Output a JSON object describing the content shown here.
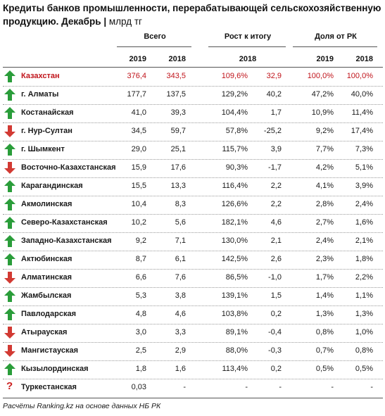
{
  "title": {
    "main": "Кредиты банков промышленности, перерабатывающей сельскохозяйственную продукцию. Декабрь",
    "separator": "|",
    "unit": "млрд тг"
  },
  "headers": {
    "total": "Всего",
    "growth": "Рост к итогу",
    "share": "Доля от РК",
    "y2019": "2019",
    "y2018": "2018"
  },
  "colors": {
    "up": "#2a9d3a",
    "down": "#d23a33",
    "highlight": "#c0141b"
  },
  "rows": [
    {
      "name": "Казахстан",
      "trend": "up",
      "highlight": true,
      "v2019": "376,4",
      "v2018": "343,5",
      "growth_pct": "109,6%",
      "growth_abs": "32,9",
      "share2019": "100,0%",
      "share2018": "100,0%"
    },
    {
      "name": "г. Алматы",
      "trend": "up",
      "v2019": "177,7",
      "v2018": "137,5",
      "growth_pct": "129,2%",
      "growth_abs": "40,2",
      "share2019": "47,2%",
      "share2018": "40,0%"
    },
    {
      "name": "Костанайская",
      "trend": "up",
      "v2019": "41,0",
      "v2018": "39,3",
      "growth_pct": "104,4%",
      "growth_abs": "1,7",
      "share2019": "10,9%",
      "share2018": "11,4%"
    },
    {
      "name": "г. Нур-Султан",
      "trend": "down",
      "v2019": "34,5",
      "v2018": "59,7",
      "growth_pct": "57,8%",
      "growth_abs": "-25,2",
      "share2019": "9,2%",
      "share2018": "17,4%"
    },
    {
      "name": "г. Шымкент",
      "trend": "up",
      "v2019": "29,0",
      "v2018": "25,1",
      "growth_pct": "115,7%",
      "growth_abs": "3,9",
      "share2019": "7,7%",
      "share2018": "7,3%"
    },
    {
      "name": "Восточно-Казахстанская",
      "trend": "down",
      "v2019": "15,9",
      "v2018": "17,6",
      "growth_pct": "90,3%",
      "growth_abs": "-1,7",
      "share2019": "4,2%",
      "share2018": "5,1%"
    },
    {
      "name": "Карагандинская",
      "trend": "up",
      "v2019": "15,5",
      "v2018": "13,3",
      "growth_pct": "116,4%",
      "growth_abs": "2,2",
      "share2019": "4,1%",
      "share2018": "3,9%"
    },
    {
      "name": "Акмолинская",
      "trend": "up",
      "v2019": "10,4",
      "v2018": "8,3",
      "growth_pct": "126,6%",
      "growth_abs": "2,2",
      "share2019": "2,8%",
      "share2018": "2,4%"
    },
    {
      "name": "Северо-Казахстанская",
      "trend": "up",
      "v2019": "10,2",
      "v2018": "5,6",
      "growth_pct": "182,1%",
      "growth_abs": "4,6",
      "share2019": "2,7%",
      "share2018": "1,6%"
    },
    {
      "name": "Западно-Казахстанская",
      "trend": "up",
      "v2019": "9,2",
      "v2018": "7,1",
      "growth_pct": "130,0%",
      "growth_abs": "2,1",
      "share2019": "2,4%",
      "share2018": "2,1%"
    },
    {
      "name": "Актюбинская",
      "trend": "up",
      "v2019": "8,7",
      "v2018": "6,1",
      "growth_pct": "142,5%",
      "growth_abs": "2,6",
      "share2019": "2,3%",
      "share2018": "1,8%"
    },
    {
      "name": "Алматинская",
      "trend": "down",
      "v2019": "6,6",
      "v2018": "7,6",
      "growth_pct": "86,5%",
      "growth_abs": "-1,0",
      "share2019": "1,7%",
      "share2018": "2,2%"
    },
    {
      "name": "Жамбылская",
      "trend": "up",
      "v2019": "5,3",
      "v2018": "3,8",
      "growth_pct": "139,1%",
      "growth_abs": "1,5",
      "share2019": "1,4%",
      "share2018": "1,1%"
    },
    {
      "name": "Павлодарская",
      "trend": "up",
      "v2019": "4,8",
      "v2018": "4,6",
      "growth_pct": "103,8%",
      "growth_abs": "0,2",
      "share2019": "1,3%",
      "share2018": "1,3%"
    },
    {
      "name": "Атырауская",
      "trend": "down",
      "v2019": "3,0",
      "v2018": "3,3",
      "growth_pct": "89,1%",
      "growth_abs": "-0,4",
      "share2019": "0,8%",
      "share2018": "1,0%"
    },
    {
      "name": "Мангистауская",
      "trend": "down",
      "v2019": "2,5",
      "v2018": "2,9",
      "growth_pct": "88,0%",
      "growth_abs": "-0,3",
      "share2019": "0,7%",
      "share2018": "0,8%"
    },
    {
      "name": "Кызылординская",
      "trend": "up",
      "v2019": "1,8",
      "v2018": "1,6",
      "growth_pct": "113,4%",
      "growth_abs": "0,2",
      "share2019": "0,5%",
      "share2018": "0,5%"
    },
    {
      "name": "Туркестанская",
      "trend": "unknown",
      "trend_symbol": "?",
      "v2019": "0,03",
      "v2018": "-",
      "growth_pct": "-",
      "growth_abs": "-",
      "share2019": "-",
      "share2018": "-"
    }
  ],
  "footer": "Расчёты Ranking.kz на основе данных НБ РК"
}
